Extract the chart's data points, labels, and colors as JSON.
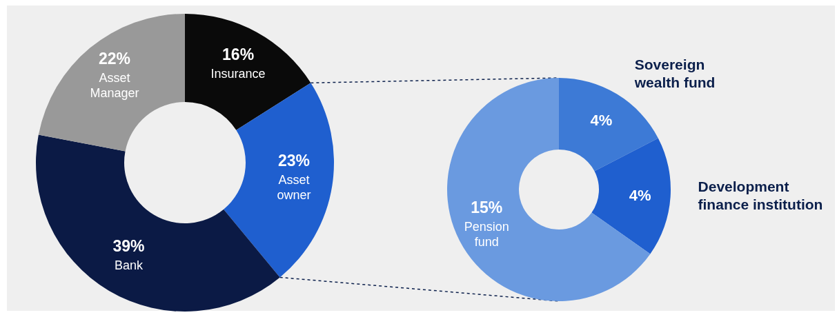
{
  "chart_data": [
    {
      "type": "donut",
      "categories": [
        "Insurance",
        "Asset owner",
        "Bank",
        "Asset Manager"
      ],
      "values": [
        16,
        23,
        39,
        22
      ],
      "colors": [
        "#0a0a0a",
        "#1f5fcf",
        "#0b1a45",
        "#999999"
      ],
      "value_labels": [
        "16%",
        "23%",
        "39%",
        "22%"
      ]
    },
    {
      "type": "donut",
      "categories": [
        "Sovereign wealth fund",
        "Development finance institution",
        "Pension fund"
      ],
      "values": [
        4,
        4,
        15
      ],
      "colors": [
        "#3d7ad6",
        "#1f5fcf",
        "#6a9ae0"
      ],
      "value_labels": [
        "4%",
        "4%",
        "15%"
      ]
    }
  ]
}
